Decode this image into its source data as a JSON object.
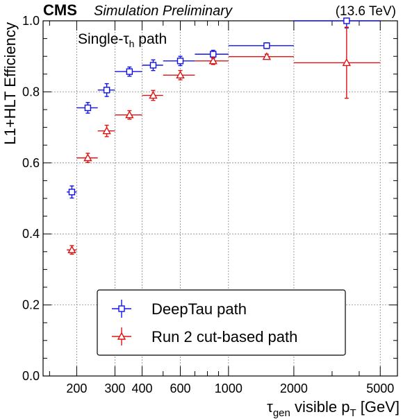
{
  "header": {
    "experiment": "CMS",
    "status": "Simulation Preliminary",
    "energy": "(13.6 TeV)"
  },
  "chart_data": {
    "type": "scatter",
    "title": "",
    "annotation": {
      "main": "Single-τ",
      "sub": "h",
      "tail": " path"
    },
    "xlabel": {
      "main": "τ",
      "sub": "gen",
      "mid": " visible p",
      "sub2": "T",
      "tail": " [GeV]"
    },
    "ylabel": "L1+HLT Efficiency",
    "xscale": "log",
    "xlim": [
      140,
      6000
    ],
    "ylim": [
      0,
      1.0
    ],
    "grid": true,
    "legend_position": "bottom-center",
    "x_ticks": [
      {
        "value": 200,
        "label": "200"
      },
      {
        "value": 300,
        "label": "300"
      },
      {
        "value": 400,
        "label": "400"
      },
      {
        "value": 600,
        "label": "600"
      },
      {
        "value": 1000,
        "label": "1000"
      },
      {
        "value": 2000,
        "label": "2000"
      },
      {
        "value": 5000,
        "label": "5000"
      }
    ],
    "y_ticks": [
      {
        "value": 0.0,
        "label": "0.0"
      },
      {
        "value": 0.2,
        "label": "0.2"
      },
      {
        "value": 0.4,
        "label": "0.4"
      },
      {
        "value": 0.6,
        "label": "0.6"
      },
      {
        "value": 0.8,
        "label": "0.8"
      },
      {
        "value": 1.0,
        "label": "1.0"
      }
    ],
    "series": [
      {
        "name": "DeepTau path",
        "color": "#1010ee",
        "marker": "open-square",
        "points": [
          {
            "x": 190,
            "xlo": 180,
            "xhi": 200,
            "y": 0.518,
            "err": 0.017
          },
          {
            "x": 225,
            "xlo": 200,
            "xhi": 250,
            "y": 0.755,
            "err": 0.015
          },
          {
            "x": 275,
            "xlo": 250,
            "xhi": 300,
            "y": 0.805,
            "err": 0.018
          },
          {
            "x": 350,
            "xlo": 300,
            "xhi": 400,
            "y": 0.857,
            "err": 0.013
          },
          {
            "x": 450,
            "xlo": 400,
            "xhi": 500,
            "y": 0.875,
            "err": 0.015
          },
          {
            "x": 600,
            "xlo": 500,
            "xhi": 700,
            "y": 0.887,
            "err": 0.013
          },
          {
            "x": 850,
            "xlo": 700,
            "xhi": 1000,
            "y": 0.906,
            "err": 0.011
          },
          {
            "x": 1500,
            "xlo": 1000,
            "xhi": 2000,
            "y": 0.93,
            "err": 0.008
          },
          {
            "x": 3500,
            "xlo": 2000,
            "xhi": 5000,
            "y": 1.0,
            "err": 0.02
          }
        ]
      },
      {
        "name": "Run 2 cut-based path",
        "color": "#e01010",
        "marker": "open-triangle",
        "points": [
          {
            "x": 190,
            "xlo": 180,
            "xhi": 200,
            "y": 0.355,
            "err": 0.012
          },
          {
            "x": 225,
            "xlo": 200,
            "xhi": 250,
            "y": 0.614,
            "err": 0.013
          },
          {
            "x": 275,
            "xlo": 250,
            "xhi": 300,
            "y": 0.69,
            "err": 0.016
          },
          {
            "x": 350,
            "xlo": 300,
            "xhi": 400,
            "y": 0.735,
            "err": 0.012
          },
          {
            "x": 450,
            "xlo": 400,
            "xhi": 500,
            "y": 0.79,
            "err": 0.014
          },
          {
            "x": 600,
            "xlo": 500,
            "xhi": 700,
            "y": 0.847,
            "err": 0.013
          },
          {
            "x": 850,
            "xlo": 700,
            "xhi": 1000,
            "y": 0.887,
            "err": 0.01
          },
          {
            "x": 1500,
            "xlo": 1000,
            "xhi": 2000,
            "y": 0.899,
            "err": 0.007
          },
          {
            "x": 3500,
            "xlo": 2000,
            "xhi": 5000,
            "y": 0.882,
            "err": 0.1
          }
        ]
      }
    ]
  }
}
